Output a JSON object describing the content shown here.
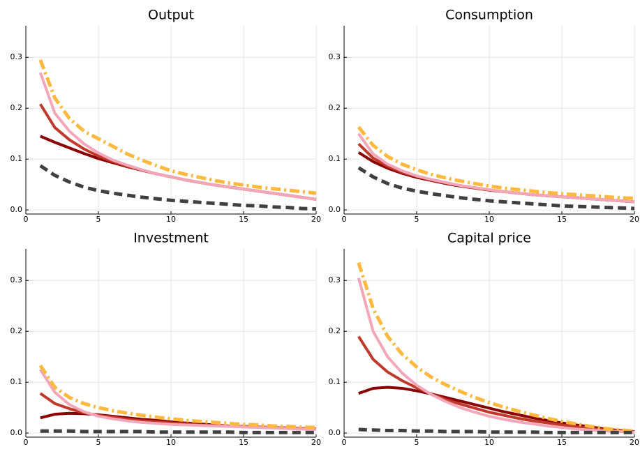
{
  "chart_data": [
    {
      "type": "line",
      "title": "Output",
      "x": [
        1,
        2,
        3,
        4,
        5,
        6,
        7,
        8,
        9,
        10,
        11,
        12,
        13,
        14,
        15,
        16,
        17,
        18,
        19,
        20
      ],
      "xlim": [
        0,
        20
      ],
      "xticks": [
        0,
        5,
        10,
        15,
        20
      ],
      "ylim": [
        -0.008,
        0.362
      ],
      "yticks": [
        {
          "value": 0,
          "label": "0.0"
        },
        0.1,
        0.2,
        0.3
      ],
      "grid": true,
      "series": [
        {
          "color": "#8b0000",
          "style": "solid",
          "values": [
            0.145,
            0.133,
            0.122,
            0.111,
            0.101,
            0.093,
            0.085,
            0.078,
            0.071,
            0.065,
            0.059,
            0.054,
            0.049,
            0.045,
            0.041,
            0.037,
            0.033,
            0.029,
            0.025,
            0.021
          ]
        },
        {
          "color": "#c0392b",
          "style": "solid",
          "values": [
            0.208,
            0.162,
            0.138,
            0.12,
            0.106,
            0.095,
            0.086,
            0.078,
            0.071,
            0.065,
            0.059,
            0.054,
            0.049,
            0.045,
            0.041,
            0.037,
            0.033,
            0.029,
            0.025,
            0.021
          ]
        },
        {
          "color": "#f4a7b9",
          "style": "solid",
          "values": [
            0.27,
            0.19,
            0.155,
            0.13,
            0.112,
            0.098,
            0.088,
            0.079,
            0.071,
            0.065,
            0.059,
            0.054,
            0.049,
            0.045,
            0.041,
            0.037,
            0.033,
            0.029,
            0.025,
            0.021
          ]
        },
        {
          "color": "#ffb93f",
          "style": "dashdot",
          "values": [
            0.295,
            0.22,
            0.18,
            0.155,
            0.14,
            0.125,
            0.11,
            0.098,
            0.087,
            0.077,
            0.07,
            0.064,
            0.058,
            0.053,
            0.049,
            0.045,
            0.042,
            0.039,
            0.036,
            0.033
          ]
        },
        {
          "color": "#404040",
          "style": "dashed",
          "values": [
            0.087,
            0.068,
            0.055,
            0.045,
            0.038,
            0.033,
            0.029,
            0.025,
            0.022,
            0.019,
            0.017,
            0.015,
            0.013,
            0.011,
            0.009,
            0.008,
            0.006,
            0.005,
            0.003,
            0.002
          ]
        }
      ]
    },
    {
      "type": "line",
      "title": "Consumption",
      "x": [
        1,
        2,
        3,
        4,
        5,
        6,
        7,
        8,
        9,
        10,
        11,
        12,
        13,
        14,
        15,
        16,
        17,
        18,
        19,
        20
      ],
      "xlim": [
        0,
        20
      ],
      "xticks": [
        0,
        5,
        10,
        15,
        20
      ],
      "ylim": [
        -0.008,
        0.362
      ],
      "yticks": [
        {
          "value": 0,
          "label": "0.0"
        },
        0.1,
        0.2,
        0.3
      ],
      "grid": true,
      "series": [
        {
          "color": "#8b0000",
          "style": "solid",
          "values": [
            0.113,
            0.095,
            0.082,
            0.072,
            0.064,
            0.058,
            0.052,
            0.047,
            0.043,
            0.039,
            0.036,
            0.033,
            0.03,
            0.028,
            0.026,
            0.024,
            0.022,
            0.02,
            0.018,
            0.016
          ]
        },
        {
          "color": "#c0392b",
          "style": "solid",
          "values": [
            0.13,
            0.102,
            0.086,
            0.074,
            0.066,
            0.059,
            0.053,
            0.048,
            0.043,
            0.039,
            0.036,
            0.033,
            0.03,
            0.028,
            0.026,
            0.024,
            0.022,
            0.02,
            0.018,
            0.016
          ]
        },
        {
          "color": "#f4a7b9",
          "style": "solid",
          "values": [
            0.15,
            0.11,
            0.09,
            0.077,
            0.067,
            0.06,
            0.054,
            0.048,
            0.044,
            0.04,
            0.036,
            0.033,
            0.03,
            0.028,
            0.026,
            0.024,
            0.022,
            0.02,
            0.018,
            0.016
          ]
        },
        {
          "color": "#ffb93f",
          "style": "dashdot",
          "values": [
            0.163,
            0.127,
            0.105,
            0.09,
            0.079,
            0.07,
            0.063,
            0.057,
            0.052,
            0.047,
            0.043,
            0.04,
            0.037,
            0.034,
            0.032,
            0.03,
            0.028,
            0.026,
            0.024,
            0.023
          ]
        },
        {
          "color": "#404040",
          "style": "dashed",
          "values": [
            0.083,
            0.065,
            0.052,
            0.043,
            0.037,
            0.032,
            0.028,
            0.024,
            0.021,
            0.018,
            0.016,
            0.014,
            0.012,
            0.01,
            0.008,
            0.007,
            0.006,
            0.005,
            0.004,
            0.003
          ]
        }
      ]
    },
    {
      "type": "line",
      "title": "Investment",
      "x": [
        1,
        2,
        3,
        4,
        5,
        6,
        7,
        8,
        9,
        10,
        11,
        12,
        13,
        14,
        15,
        16,
        17,
        18,
        19,
        20
      ],
      "xlim": [
        0,
        20
      ],
      "xticks": [
        0,
        5,
        10,
        15,
        20
      ],
      "ylim": [
        -0.008,
        0.362
      ],
      "yticks": [
        {
          "value": 0,
          "label": "0.0"
        },
        0.1,
        0.2,
        0.3
      ],
      "grid": true,
      "series": [
        {
          "color": "#8b0000",
          "style": "solid",
          "values": [
            0.03,
            0.037,
            0.039,
            0.038,
            0.036,
            0.033,
            0.03,
            0.027,
            0.025,
            0.022,
            0.02,
            0.018,
            0.016,
            0.014,
            0.013,
            0.012,
            0.011,
            0.01,
            0.009,
            0.008
          ]
        },
        {
          "color": "#c0392b",
          "style": "solid",
          "values": [
            0.078,
            0.058,
            0.048,
            0.04,
            0.035,
            0.031,
            0.027,
            0.024,
            0.022,
            0.02,
            0.018,
            0.016,
            0.015,
            0.014,
            0.013,
            0.012,
            0.011,
            0.01,
            0.009,
            0.008
          ]
        },
        {
          "color": "#f4a7b9",
          "style": "solid",
          "values": [
            0.125,
            0.08,
            0.056,
            0.042,
            0.033,
            0.028,
            0.024,
            0.021,
            0.019,
            0.017,
            0.016,
            0.015,
            0.014,
            0.013,
            0.012,
            0.011,
            0.01,
            0.009,
            0.008,
            0.007
          ]
        },
        {
          "color": "#ffb93f",
          "style": "dashdot",
          "values": [
            0.133,
            0.09,
            0.07,
            0.058,
            0.05,
            0.044,
            0.039,
            0.035,
            0.031,
            0.028,
            0.025,
            0.023,
            0.021,
            0.019,
            0.017,
            0.016,
            0.014,
            0.013,
            0.012,
            0.011
          ]
        },
        {
          "color": "#404040",
          "style": "dashed",
          "values": [
            0.004,
            0.004,
            0.004,
            0.003,
            0.003,
            0.003,
            0.003,
            0.003,
            0.002,
            0.002,
            0.002,
            0.002,
            0.002,
            0.002,
            0.001,
            0.001,
            0.001,
            0.001,
            0.001,
            0.001
          ]
        }
      ]
    },
    {
      "type": "line",
      "title": "Capital price",
      "x": [
        1,
        2,
        3,
        4,
        5,
        6,
        7,
        8,
        9,
        10,
        11,
        12,
        13,
        14,
        15,
        16,
        17,
        18,
        19,
        20
      ],
      "xlim": [
        0,
        20
      ],
      "xticks": [
        0,
        5,
        10,
        15,
        20
      ],
      "ylim": [
        -0.008,
        0.362
      ],
      "yticks": [
        {
          "value": 0,
          "label": "0.0"
        },
        0.1,
        0.2,
        0.3
      ],
      "grid": true,
      "series": [
        {
          "color": "#8b0000",
          "style": "solid",
          "values": [
            0.078,
            0.088,
            0.09,
            0.088,
            0.083,
            0.077,
            0.07,
            0.063,
            0.056,
            0.049,
            0.042,
            0.036,
            0.03,
            0.025,
            0.02,
            0.016,
            0.012,
            0.008,
            0.005,
            0.003
          ]
        },
        {
          "color": "#c0392b",
          "style": "solid",
          "values": [
            0.19,
            0.145,
            0.12,
            0.103,
            0.089,
            0.077,
            0.066,
            0.057,
            0.049,
            0.041,
            0.035,
            0.029,
            0.024,
            0.02,
            0.016,
            0.012,
            0.009,
            0.006,
            0.004,
            0.002
          ]
        },
        {
          "color": "#f4a7b9",
          "style": "solid",
          "values": [
            0.305,
            0.2,
            0.15,
            0.118,
            0.094,
            0.076,
            0.062,
            0.05,
            0.041,
            0.033,
            0.027,
            0.022,
            0.018,
            0.014,
            0.011,
            0.008,
            0.006,
            0.004,
            0.003,
            0.002
          ]
        },
        {
          "color": "#ffb93f",
          "style": "dashdot",
          "values": [
            0.335,
            0.245,
            0.19,
            0.155,
            0.13,
            0.11,
            0.095,
            0.082,
            0.07,
            0.06,
            0.051,
            0.043,
            0.036,
            0.029,
            0.023,
            0.018,
            0.013,
            0.009,
            0.006,
            0.004
          ]
        },
        {
          "color": "#404040",
          "style": "dashed",
          "values": [
            0.007,
            0.006,
            0.005,
            0.005,
            0.004,
            0.004,
            0.003,
            0.003,
            0.003,
            0.002,
            0.002,
            0.002,
            0.002,
            0.001,
            0.001,
            0.001,
            0.001,
            0.001,
            0.001,
            0.001
          ]
        }
      ]
    }
  ]
}
